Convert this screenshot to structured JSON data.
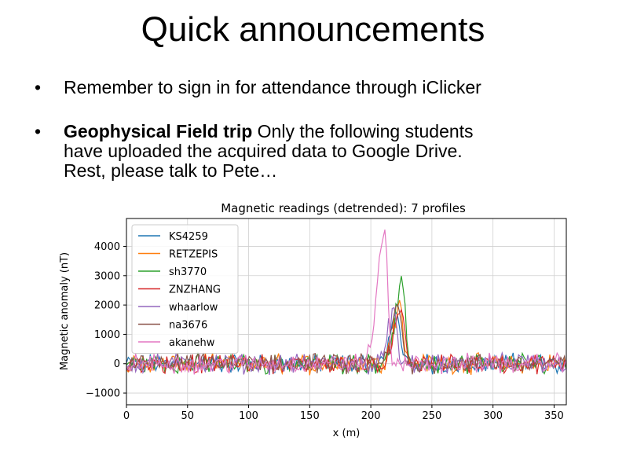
{
  "slide": {
    "title": "Quick announcements",
    "bullets": [
      {
        "marker": "•",
        "text": "Remember to sign in for attendance through iClicker"
      },
      {
        "marker": "•",
        "bold": "Geophysical Field trip",
        "text": " Only the following students",
        "lines": [
          "have uploaded the acquired data to Google Drive.",
          "Rest, please talk to Pete…"
        ]
      }
    ]
  },
  "chart_data": {
    "type": "line",
    "title": "Magnetic readings (detrended): 7 profiles",
    "xlabel": "x (m)",
    "ylabel": "Magnetic anomaly (nT)",
    "xlim": [
      0,
      360
    ],
    "ylim": [
      -1400,
      4950
    ],
    "xticks": [
      0,
      50,
      100,
      150,
      200,
      250,
      300,
      350
    ],
    "yticks": [
      -1000,
      0,
      1000,
      2000,
      3000,
      4000
    ],
    "ytick_labels": [
      "−1000",
      "0",
      "1000",
      "2000",
      "3000",
      "4000"
    ],
    "grid": true,
    "legend_position": "top-left",
    "noise_amplitude_nT": 250,
    "series": [
      {
        "name": "KS4259",
        "color": "#1f77b4",
        "peak_x": 222,
        "peak_value": 1700,
        "x_start": 0,
        "x_end": 360
      },
      {
        "name": "RETZEPIS",
        "color": "#ff7f0e",
        "peak_x": 224,
        "peak_value": 2000,
        "x_start": 0,
        "x_end": 360
      },
      {
        "name": "sh3770",
        "color": "#2ca02c",
        "peak_x": 226,
        "peak_value": 2650,
        "x_start": 0,
        "x_end": 360
      },
      {
        "name": "ZNZHANG",
        "color": "#d62728",
        "peak_x": 225,
        "peak_value": 1800,
        "x_start": 0,
        "x_end": 360
      },
      {
        "name": "whaarlow",
        "color": "#9467bd",
        "peak_x": 219,
        "peak_value": 1600,
        "x_start": 0,
        "x_end": 360
      },
      {
        "name": "na3676",
        "color": "#8c564b",
        "peak_x": 223,
        "peak_value": 1900,
        "x_start": 0,
        "x_end": 360
      },
      {
        "name": "akanehw",
        "color": "#e377c2",
        "peak_x": 211,
        "peak_value": 4650,
        "x_start": 0,
        "x_end": 360
      }
    ]
  }
}
